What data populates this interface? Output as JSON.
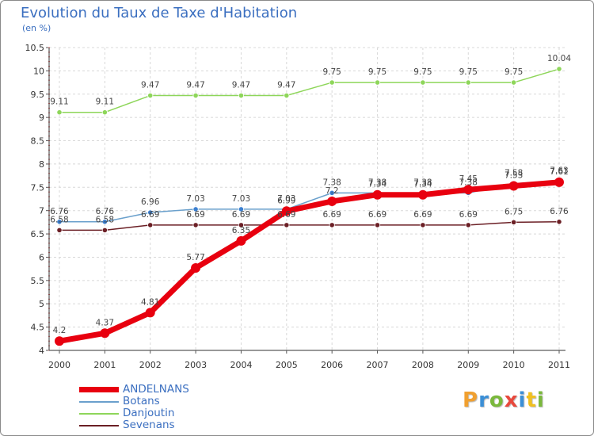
{
  "title": "Evolution du Taux de Taxe d'Habitation",
  "subtitle": "(en %)",
  "logo": {
    "letters": [
      "P",
      "r",
      "o",
      "x",
      "i",
      "t",
      "i"
    ],
    "colors": [
      "#f0a030",
      "#3b8fd6",
      "#7ab83c",
      "#e8483c",
      "#3b8fd6",
      "#f0c020",
      "#7ab83c"
    ]
  },
  "chart_data": {
    "type": "line",
    "x": [
      "2000",
      "2001",
      "2002",
      "2003",
      "2004",
      "2005",
      "2006",
      "2007",
      "2008",
      "2009",
      "2010",
      "2011"
    ],
    "ylim": [
      4,
      10.5
    ],
    "yticks": [
      "4",
      "4.5",
      "5",
      "5.5",
      "6",
      "6.5",
      "7",
      "7.5",
      "8",
      "8.5",
      "9",
      "9.5",
      "10",
      "10.5"
    ],
    "series": [
      {
        "name": "ANDELNANS",
        "color": "#e8000f",
        "values": [
          4.2,
          4.37,
          4.81,
          5.77,
          6.35,
          6.99,
          7.2,
          7.34,
          7.34,
          7.45,
          7.53,
          7.61
        ]
      },
      {
        "name": "Botans",
        "color": "#6aa0cc",
        "values": [
          6.76,
          6.76,
          6.96,
          7.03,
          7.03,
          7.03,
          7.38,
          7.38,
          7.38,
          7.38,
          7.58,
          7.63
        ]
      },
      {
        "name": "Danjoutin",
        "color": "#8ed65a",
        "values": [
          9.11,
          9.11,
          9.47,
          9.47,
          9.47,
          9.47,
          9.75,
          9.75,
          9.75,
          9.75,
          9.75,
          10.04
        ]
      },
      {
        "name": "Sevenans",
        "color": "#6b1f25",
        "values": [
          6.58,
          6.58,
          6.69,
          6.69,
          6.69,
          6.69,
          6.69,
          6.69,
          6.69,
          6.69,
          6.75,
          6.76
        ]
      }
    ]
  }
}
